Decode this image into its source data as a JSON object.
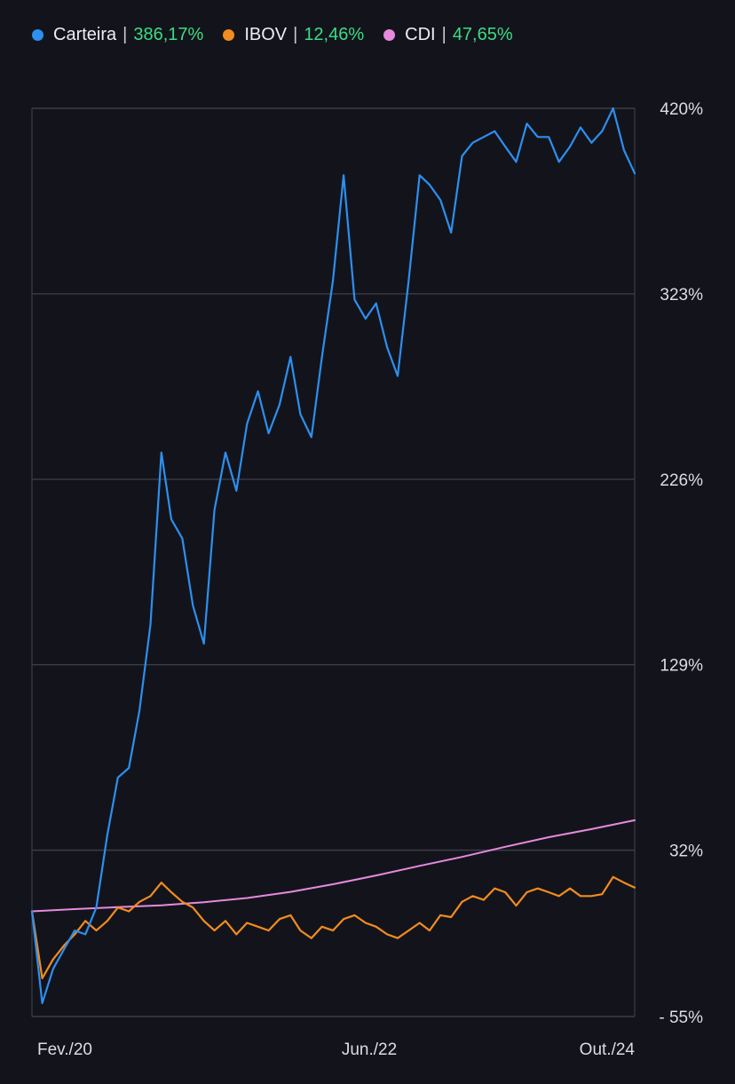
{
  "legend": [
    {
      "name": "Carteira",
      "sep": "|",
      "value": "386,17%",
      "color": "#2d8ff0"
    },
    {
      "name": "IBOV",
      "sep": "|",
      "value": "12,46%",
      "color": "#f28c1f"
    },
    {
      "name": "CDI",
      "sep": "|",
      "value": "47,65%",
      "color": "#e68adf"
    }
  ],
  "chart_data": {
    "type": "line",
    "x_start": "2020-02",
    "x_end": "2024-10",
    "xtick_labels": [
      "Fev./20",
      "Jun./22",
      "Out./24"
    ],
    "ytick_labels": [
      "420%",
      "323%",
      "226%",
      "129%",
      "32%",
      "- 55%"
    ],
    "ytick_values": [
      420,
      323,
      226,
      129,
      32,
      -55
    ],
    "ylim": [
      -55,
      420
    ],
    "grid": "horizontal",
    "legend_position": "top-left",
    "colors": {
      "Carteira": "#2d8ff0",
      "IBOV": "#f28c1f",
      "CDI": "#e68adf"
    },
    "series": [
      {
        "name": "Carteira",
        "color": "#2d8ff0",
        "x": [
          "2020-02",
          "2020-03",
          "2020-04",
          "2020-05",
          "2020-06",
          "2020-07",
          "2020-08",
          "2020-09",
          "2020-10",
          "2020-11",
          "2020-12",
          "2021-01",
          "2021-02",
          "2021-03",
          "2021-04",
          "2021-05",
          "2021-06",
          "2021-07",
          "2021-08",
          "2021-09",
          "2021-10",
          "2021-11",
          "2021-12",
          "2022-01",
          "2022-02",
          "2022-03",
          "2022-04",
          "2022-05",
          "2022-06",
          "2022-07",
          "2022-08",
          "2022-09",
          "2022-10",
          "2022-11",
          "2022-12",
          "2023-01",
          "2023-02",
          "2023-03",
          "2023-04",
          "2023-05",
          "2023-06",
          "2023-07",
          "2023-08",
          "2023-09",
          "2023-10",
          "2023-11",
          "2023-12",
          "2024-01",
          "2024-02",
          "2024-03",
          "2024-04",
          "2024-05",
          "2024-06",
          "2024-07",
          "2024-08",
          "2024-09",
          "2024-10"
        ],
        "values": [
          0,
          -48,
          -30,
          -20,
          -10,
          -12,
          2,
          40,
          70,
          75,
          105,
          150,
          240,
          205,
          195,
          160,
          140,
          210,
          240,
          220,
          255,
          272,
          250,
          265,
          290,
          260,
          248,
          290,
          330,
          385,
          320,
          310,
          318,
          295,
          280,
          330,
          385,
          380,
          372,
          355,
          395,
          402,
          405,
          408,
          400,
          392,
          412,
          405,
          405,
          392,
          400,
          410,
          402,
          408,
          420,
          398,
          386
        ]
      },
      {
        "name": "IBOV",
        "color": "#f28c1f",
        "x": [
          "2020-02",
          "2020-03",
          "2020-04",
          "2020-05",
          "2020-06",
          "2020-07",
          "2020-08",
          "2020-09",
          "2020-10",
          "2020-11",
          "2020-12",
          "2021-01",
          "2021-02",
          "2021-03",
          "2021-04",
          "2021-05",
          "2021-06",
          "2021-07",
          "2021-08",
          "2021-09",
          "2021-10",
          "2021-11",
          "2021-12",
          "2022-01",
          "2022-02",
          "2022-03",
          "2022-04",
          "2022-05",
          "2022-06",
          "2022-07",
          "2022-08",
          "2022-09",
          "2022-10",
          "2022-11",
          "2022-12",
          "2023-01",
          "2023-02",
          "2023-03",
          "2023-04",
          "2023-05",
          "2023-06",
          "2023-07",
          "2023-08",
          "2023-09",
          "2023-10",
          "2023-11",
          "2023-12",
          "2024-01",
          "2024-02",
          "2024-03",
          "2024-04",
          "2024-05",
          "2024-06",
          "2024-07",
          "2024-08",
          "2024-09",
          "2024-10"
        ],
        "values": [
          0,
          -35,
          -25,
          -18,
          -12,
          -5,
          -10,
          -5,
          2,
          0,
          5,
          8,
          15,
          10,
          5,
          2,
          -5,
          -10,
          -5,
          -12,
          -6,
          -8,
          -10,
          -4,
          -2,
          -10,
          -14,
          -8,
          -10,
          -4,
          -2,
          -6,
          -8,
          -12,
          -14,
          -10,
          -6,
          -10,
          -2,
          -3,
          5,
          8,
          6,
          12,
          10,
          3,
          10,
          12,
          10,
          8,
          12,
          8,
          8,
          9,
          18,
          15,
          12.46
        ]
      },
      {
        "name": "CDI",
        "color": "#e68adf",
        "x": [
          "2020-02",
          "2020-06",
          "2020-10",
          "2021-02",
          "2021-06",
          "2021-10",
          "2022-02",
          "2022-06",
          "2022-10",
          "2023-02",
          "2023-06",
          "2023-10",
          "2024-02",
          "2024-06",
          "2024-10"
        ],
        "values": [
          0,
          1.2,
          2.2,
          3.2,
          4.8,
          7.0,
          10.2,
          14.2,
          18.8,
          23.8,
          28.5,
          33.8,
          38.8,
          43.0,
          47.65
        ]
      }
    ]
  }
}
